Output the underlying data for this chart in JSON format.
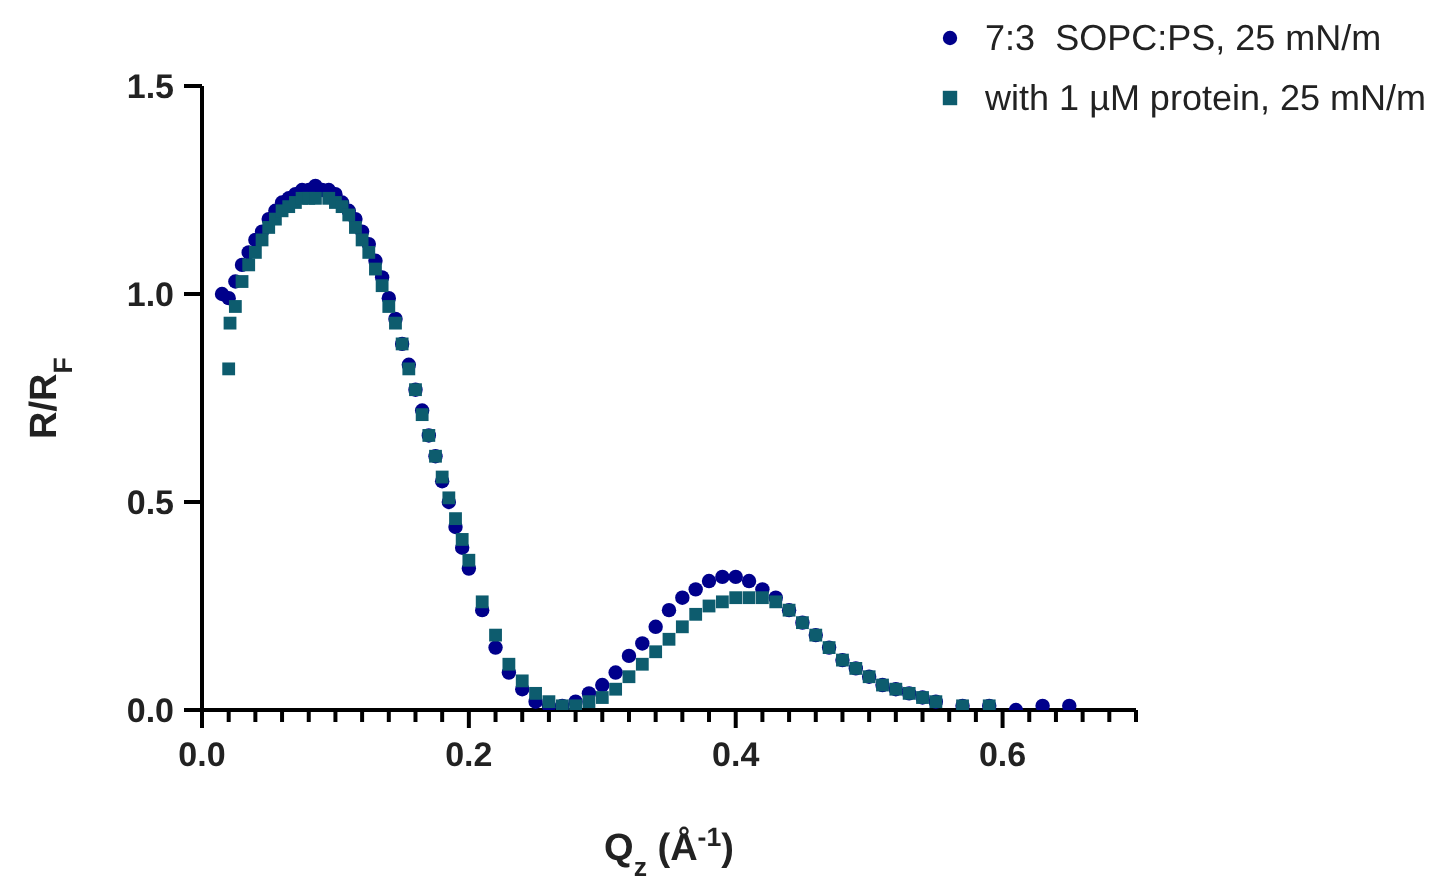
{
  "chart_data": {
    "type": "scatter",
    "xlabel": "Q$_{z}$ (Å$^{-1}$)",
    "ylabel": "R/R$_{F}$",
    "xlim": [
      0,
      0.7
    ],
    "ylim": [
      0,
      1.5
    ],
    "xticks": [
      {
        "value": 0,
        "label": "0.0"
      },
      {
        "value": 0.02,
        "label": null
      },
      {
        "value": 0.04,
        "label": null
      },
      {
        "value": 0.06,
        "label": null
      },
      {
        "value": 0.08,
        "label": null
      },
      {
        "value": 0.1,
        "label": null
      },
      {
        "value": 0.12,
        "label": null
      },
      {
        "value": 0.14,
        "label": null
      },
      {
        "value": 0.16,
        "label": null
      },
      {
        "value": 0.18,
        "label": null
      },
      {
        "value": 0.2,
        "label": "0.2"
      },
      {
        "value": 0.22,
        "label": null
      },
      {
        "value": 0.24,
        "label": null
      },
      {
        "value": 0.26,
        "label": null
      },
      {
        "value": 0.28,
        "label": null
      },
      {
        "value": 0.3,
        "label": null
      },
      {
        "value": 0.32,
        "label": null
      },
      {
        "value": 0.34,
        "label": null
      },
      {
        "value": 0.36,
        "label": null
      },
      {
        "value": 0.38,
        "label": null
      },
      {
        "value": 0.4,
        "label": "0.4"
      },
      {
        "value": 0.42,
        "label": null
      },
      {
        "value": 0.44,
        "label": null
      },
      {
        "value": 0.46,
        "label": null
      },
      {
        "value": 0.48,
        "label": null
      },
      {
        "value": 0.5,
        "label": null
      },
      {
        "value": 0.52,
        "label": null
      },
      {
        "value": 0.54,
        "label": null
      },
      {
        "value": 0.56,
        "label": null
      },
      {
        "value": 0.58,
        "label": null
      },
      {
        "value": 0.6,
        "label": "0.6"
      },
      {
        "value": 0.62,
        "label": null
      },
      {
        "value": 0.64,
        "label": null
      },
      {
        "value": 0.66,
        "label": null
      },
      {
        "value": 0.68,
        "label": null
      },
      {
        "value": 0.7,
        "label": null
      }
    ],
    "yticks": [
      {
        "value": 0,
        "label": "0.0"
      },
      {
        "value": 0.5,
        "label": "0.5"
      },
      {
        "value": 1,
        "label": "1.0"
      },
      {
        "value": 1.5,
        "label": "1.5"
      }
    ],
    "grid": false,
    "legend": "top right",
    "series": [
      {
        "name": "7:3  SOPC:PS, 25 mN/m",
        "color": "#00008b",
        "marker": "circle",
        "x": [
          0.015,
          0.02,
          0.025,
          0.03,
          0.035,
          0.04,
          0.045,
          0.05,
          0.055,
          0.06,
          0.065,
          0.07,
          0.075,
          0.08,
          0.085,
          0.09,
          0.095,
          0.1,
          0.105,
          0.11,
          0.115,
          0.12,
          0.125,
          0.13,
          0.135,
          0.14,
          0.145,
          0.15,
          0.155,
          0.16,
          0.165,
          0.17,
          0.175,
          0.18,
          0.185,
          0.19,
          0.195,
          0.2,
          0.21,
          0.22,
          0.23,
          0.24,
          0.25,
          0.26,
          0.27,
          0.28,
          0.29,
          0.3,
          0.31,
          0.32,
          0.33,
          0.34,
          0.35,
          0.36,
          0.37,
          0.38,
          0.39,
          0.4,
          0.41,
          0.42,
          0.43,
          0.44,
          0.45,
          0.46,
          0.47,
          0.48,
          0.49,
          0.5,
          0.51,
          0.52,
          0.53,
          0.54,
          0.55,
          0.57,
          0.59,
          0.61,
          0.63,
          0.65
        ],
        "values": [
          1.0,
          0.99,
          1.03,
          1.07,
          1.1,
          1.13,
          1.15,
          1.18,
          1.2,
          1.22,
          1.23,
          1.24,
          1.25,
          1.25,
          1.26,
          1.25,
          1.25,
          1.24,
          1.22,
          1.2,
          1.18,
          1.15,
          1.12,
          1.08,
          1.04,
          0.99,
          0.94,
          0.88,
          0.83,
          0.77,
          0.72,
          0.66,
          0.61,
          0.55,
          0.5,
          0.44,
          0.39,
          0.34,
          0.24,
          0.15,
          0.09,
          0.05,
          0.02,
          0.01,
          0.01,
          0.02,
          0.04,
          0.06,
          0.09,
          0.13,
          0.16,
          0.2,
          0.24,
          0.27,
          0.29,
          0.31,
          0.32,
          0.32,
          0.31,
          0.29,
          0.27,
          0.24,
          0.21,
          0.18,
          0.15,
          0.12,
          0.1,
          0.08,
          0.06,
          0.05,
          0.04,
          0.03,
          0.02,
          0.01,
          0.01,
          0.0,
          0.01,
          0.01
        ]
      },
      {
        "name": "with 1 µM protein, 25 mN/m",
        "color": "#0d5c6e",
        "marker": "square",
        "x": [
          0.02,
          0.021,
          0.025,
          0.03,
          0.035,
          0.04,
          0.045,
          0.05,
          0.055,
          0.06,
          0.065,
          0.07,
          0.075,
          0.08,
          0.085,
          0.095,
          0.1,
          0.105,
          0.11,
          0.115,
          0.12,
          0.125,
          0.13,
          0.135,
          0.14,
          0.145,
          0.15,
          0.155,
          0.16,
          0.165,
          0.17,
          0.175,
          0.18,
          0.185,
          0.19,
          0.195,
          0.2,
          0.21,
          0.22,
          0.23,
          0.24,
          0.25,
          0.26,
          0.27,
          0.28,
          0.29,
          0.3,
          0.31,
          0.32,
          0.33,
          0.34,
          0.35,
          0.36,
          0.37,
          0.38,
          0.39,
          0.4,
          0.41,
          0.42,
          0.43,
          0.44,
          0.45,
          0.46,
          0.47,
          0.48,
          0.49,
          0.5,
          0.51,
          0.52,
          0.53,
          0.54,
          0.55,
          0.57,
          0.59
        ],
        "values": [
          0.82,
          0.93,
          0.97,
          1.03,
          1.07,
          1.1,
          1.13,
          1.16,
          1.18,
          1.2,
          1.21,
          1.22,
          1.23,
          1.23,
          1.23,
          1.23,
          1.22,
          1.21,
          1.19,
          1.16,
          1.13,
          1.1,
          1.06,
          1.02,
          0.97,
          0.93,
          0.88,
          0.82,
          0.77,
          0.71,
          0.66,
          0.61,
          0.56,
          0.51,
          0.46,
          0.41,
          0.36,
          0.26,
          0.18,
          0.11,
          0.07,
          0.04,
          0.02,
          0.01,
          0.01,
          0.02,
          0.03,
          0.05,
          0.08,
          0.11,
          0.14,
          0.17,
          0.2,
          0.23,
          0.25,
          0.26,
          0.27,
          0.27,
          0.27,
          0.26,
          0.24,
          0.21,
          0.18,
          0.15,
          0.12,
          0.1,
          0.08,
          0.06,
          0.05,
          0.04,
          0.03,
          0.02,
          0.01,
          0.01
        ]
      }
    ]
  }
}
